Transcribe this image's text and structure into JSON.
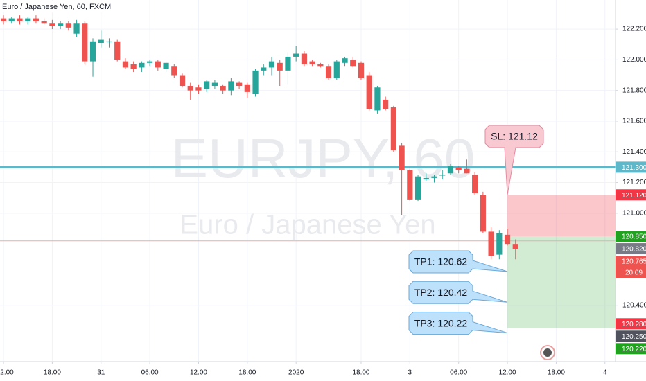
{
  "chart_data": {
    "type": "candlestick",
    "title": "Euro / Japanese Yen, 60, FXCM",
    "watermark": "EURJPY, 60",
    "watermark_subtitle": "Euro / Japanese Yen",
    "up_color": "#26a69a",
    "down_color": "#ef5350",
    "open": [
      122.27,
      122.25,
      122.27,
      122.25,
      122.27,
      122.25,
      122.24,
      122.22,
      122.24,
      122.17,
      122.24,
      121.99,
      122.11,
      122.12,
      122.12,
      121.99,
      121.97,
      121.95,
      121.98,
      121.99,
      121.94,
      121.96,
      121.9,
      121.83,
      121.82,
      121.81,
      121.83,
      121.83,
      121.8,
      121.85,
      121.84,
      121.78,
      121.93,
      121.95,
      121.98,
      121.93,
      122.02,
      122.04,
      121.99,
      121.97,
      121.96,
      121.88,
      121.98,
      122.0,
      121.98,
      121.9,
      121.67,
      121.74,
      121.69,
      121.44,
      121.28,
      121.09,
      121.22,
      121.23,
      121.25,
      121.26,
      121.3,
      121.29,
      121.25,
      121.12,
      120.88,
      120.73,
      120.86,
      120.8
    ],
    "high": [
      122.29,
      122.28,
      122.29,
      122.28,
      122.29,
      122.27,
      122.26,
      122.25,
      122.25,
      122.26,
      122.25,
      122.14,
      122.19,
      122.14,
      122.13,
      122.01,
      121.99,
      121.99,
      122.0,
      122.0,
      121.99,
      121.97,
      121.91,
      121.85,
      121.84,
      121.87,
      121.87,
      121.84,
      121.88,
      121.86,
      121.85,
      121.94,
      121.97,
      122.02,
      122.0,
      122.05,
      122.09,
      122.06,
      122.0,
      121.98,
      121.97,
      122.0,
      122.02,
      122.02,
      121.99,
      121.92,
      121.83,
      121.76,
      121.7,
      121.46,
      121.3,
      121.25,
      121.26,
      121.25,
      121.28,
      121.32,
      121.31,
      121.35,
      121.27,
      121.14,
      120.91,
      120.89,
      120.9,
      120.83
    ],
    "low": [
      122.23,
      122.24,
      122.23,
      122.23,
      122.24,
      122.23,
      122.2,
      122.2,
      122.19,
      122.15,
      121.97,
      121.89,
      122.08,
      122.08,
      121.99,
      121.94,
      121.92,
      121.92,
      121.96,
      121.93,
      121.92,
      121.88,
      121.82,
      121.74,
      121.78,
      121.79,
      121.81,
      121.78,
      121.77,
      121.81,
      121.75,
      121.76,
      121.9,
      121.9,
      121.83,
      121.84,
      121.99,
      121.96,
      121.96,
      121.95,
      121.87,
      121.87,
      121.96,
      121.95,
      121.87,
      121.67,
      121.65,
      121.67,
      121.4,
      120.99,
      121.08,
      121.08,
      121.21,
      121.2,
      121.22,
      121.25,
      121.26,
      121.26,
      121.12,
      120.87,
      120.7,
      120.7,
      120.79,
      120.7
    ],
    "close": [
      122.25,
      122.27,
      122.25,
      122.27,
      122.25,
      122.24,
      122.22,
      122.24,
      122.21,
      122.24,
      121.99,
      122.12,
      122.13,
      122.12,
      122.0,
      121.95,
      121.94,
      121.98,
      121.99,
      121.95,
      121.98,
      121.9,
      121.83,
      121.8,
      121.8,
      121.86,
      121.85,
      121.8,
      121.86,
      121.83,
      121.79,
      121.93,
      121.95,
      121.99,
      121.93,
      122.02,
      122.04,
      121.97,
      121.97,
      121.96,
      121.88,
      121.99,
      122.01,
      121.96,
      121.88,
      121.68,
      121.82,
      121.68,
      121.41,
      121.28,
      121.09,
      121.24,
      121.23,
      121.24,
      121.25,
      121.31,
      121.28,
      121.26,
      121.13,
      120.88,
      120.72,
      120.87,
      120.8,
      120.765
    ],
    "xlim": [
      -0.43,
      75.3
    ],
    "xticks": [
      {
        "value": 0,
        "label": "2:00"
      },
      {
        "value": 6,
        "label": "18:00"
      },
      {
        "value": 12,
        "label": "31"
      },
      {
        "value": 18,
        "label": "06:00"
      },
      {
        "value": 24,
        "label": "12:00"
      },
      {
        "value": 30,
        "label": "18:00"
      },
      {
        "value": 36,
        "label": "2020"
      },
      {
        "value": 44,
        "label": "18:00"
      },
      {
        "value": 50,
        "label": "3"
      },
      {
        "value": 56,
        "label": "06:00"
      },
      {
        "value": 62,
        "label": "12:00"
      },
      {
        "value": 68,
        "label": "18:00"
      },
      {
        "value": 74,
        "label": "4"
      }
    ],
    "ylim": [
      120.033,
      122.39
    ],
    "yticks": [
      {
        "value": 122.2,
        "label": "122.200"
      },
      {
        "value": 122.0,
        "label": "122.000"
      },
      {
        "value": 121.8,
        "label": "121.800"
      },
      {
        "value": 121.6,
        "label": "121.600"
      },
      {
        "value": 121.4,
        "label": "121.400"
      },
      {
        "value": 121.2,
        "label": "121.200"
      },
      {
        "value": 121.0,
        "label": "121.000"
      },
      {
        "value": 120.4,
        "label": "120.400"
      }
    ],
    "grid": true,
    "horizontal_lines": [
      {
        "value": 121.3,
        "color": "#5db8c9"
      },
      {
        "value": 120.82,
        "color": "#f4a7a7"
      }
    ],
    "stop_zone": [
      120.85,
      121.12
    ],
    "target_zone": [
      120.25,
      120.85
    ],
    "zone_start": 62,
    "price_tags": [
      {
        "value": 121.3,
        "label": "121.300",
        "color": "#5db8c9"
      },
      {
        "value": 121.12,
        "label": "121.120",
        "color": "#f23645"
      },
      {
        "value": 120.85,
        "label": "120.850",
        "color": "#22a020"
      },
      {
        "value": 120.82,
        "label": "120.820",
        "color": "#787b86"
      },
      {
        "value": 120.765,
        "label": "120.765",
        "color": "#ef5350"
      },
      {
        "value": 120.28,
        "label": "120.280",
        "color": "#f23645"
      },
      {
        "value": 120.25,
        "label": "120.250",
        "color": "#50535e"
      },
      {
        "value": 120.22,
        "label": "120.220",
        "color": "#22a020"
      }
    ],
    "countdown": "20:09",
    "callouts": [
      {
        "text": "SL: 121.12",
        "value": 121.12,
        "color": "#f9c9d2",
        "border": "#e58aa0"
      },
      {
        "text": "TP1: 120.62",
        "value": 120.62,
        "color": "#bde0fb",
        "border": "#6aa9d8"
      },
      {
        "text": "TP2: 120.42",
        "value": 120.42,
        "color": "#bde0fb",
        "border": "#6aa9d8"
      },
      {
        "text": "TP3: 120.22",
        "value": 120.22,
        "color": "#bde0fb",
        "border": "#6aa9d8"
      }
    ]
  }
}
